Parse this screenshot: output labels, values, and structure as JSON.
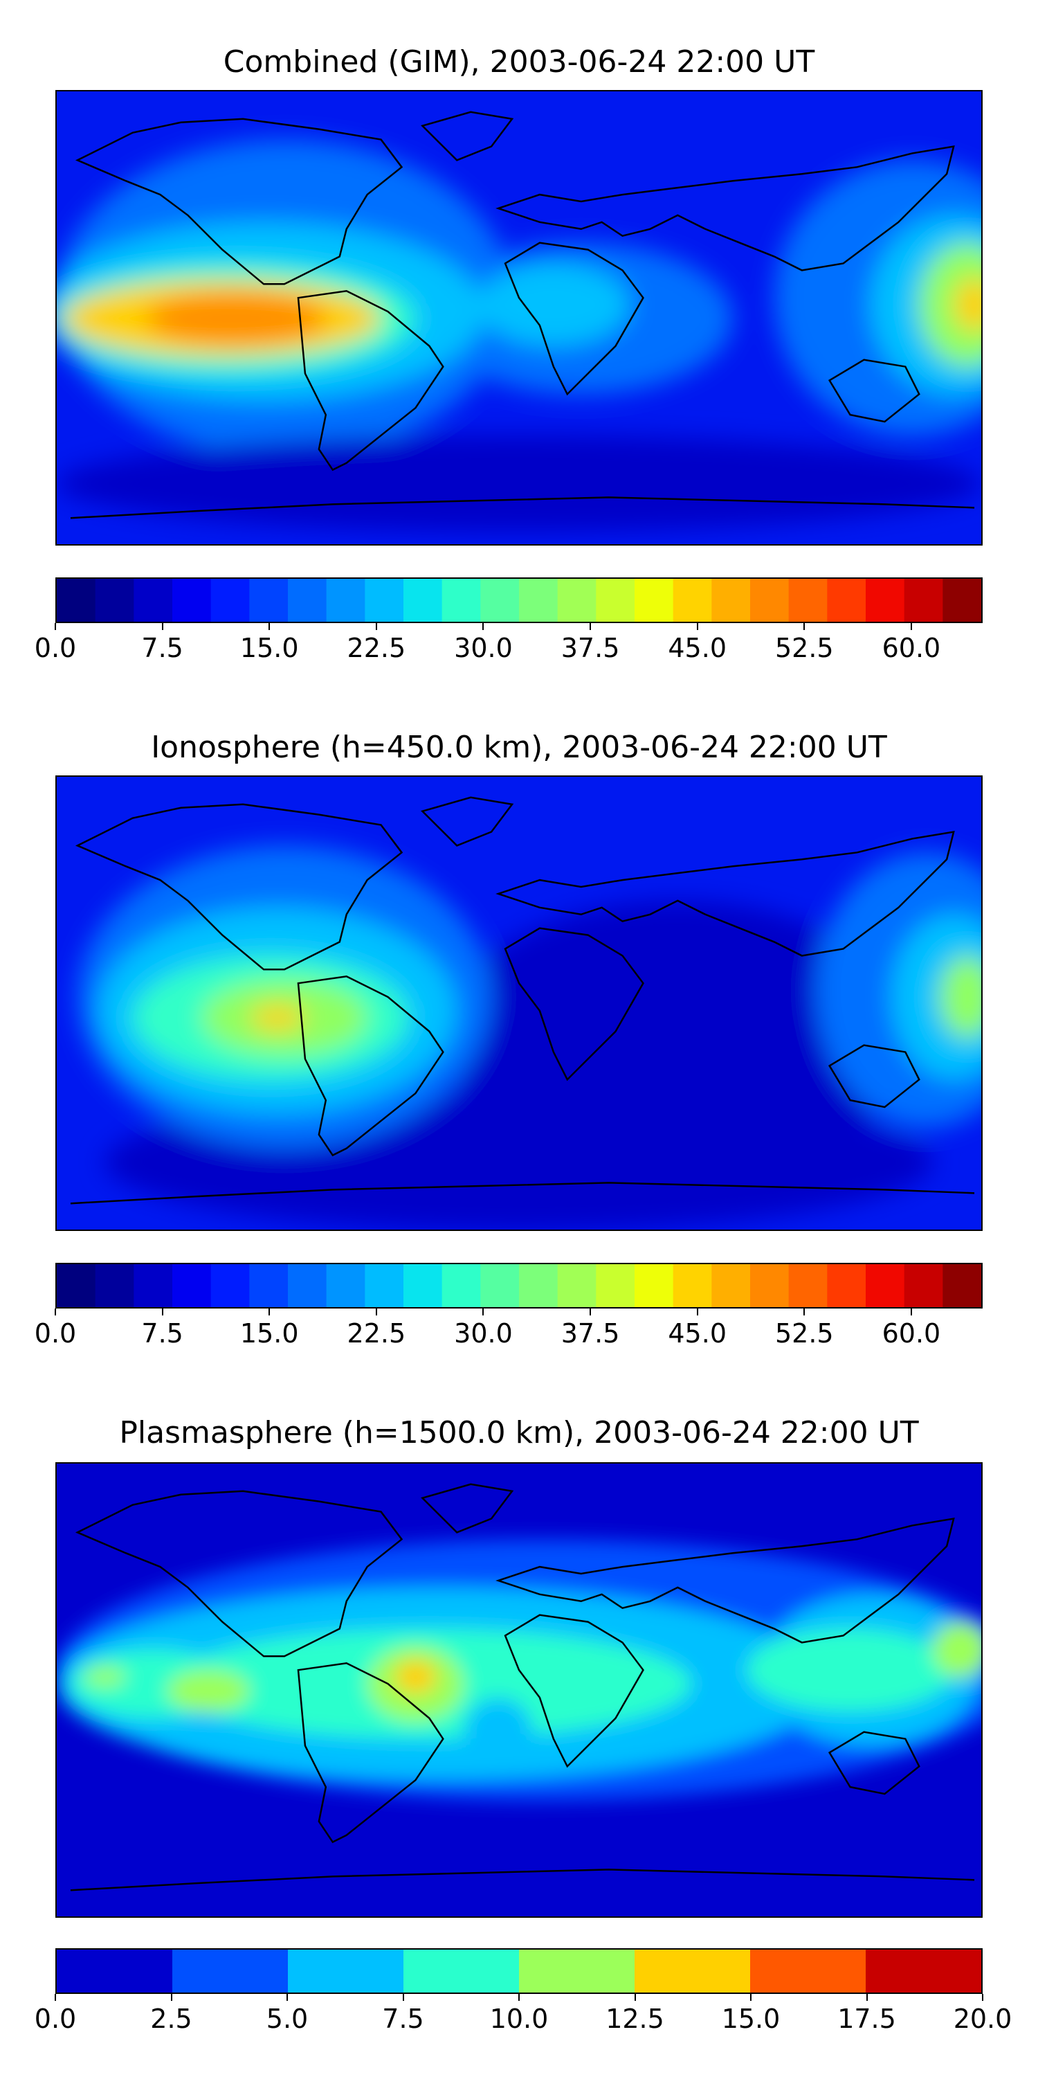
{
  "panels": [
    {
      "title": "Combined (GIM), 2003-06-24 22:00 UT",
      "colorbar_colors": [
        "#00007f",
        "#00009c",
        "#0000c8",
        "#0000f1",
        "#001cff",
        "#0044ff",
        "#006cff",
        "#0094ff",
        "#00bcff",
        "#08e4ee",
        "#2effc9",
        "#55ffa1",
        "#7cff7a",
        "#a1ff55",
        "#c9ff2e",
        "#eeff08",
        "#ffd300",
        "#ffaf00",
        "#ff8800",
        "#ff6500",
        "#ff3a00",
        "#f10800",
        "#c80000",
        "#8e0000"
      ],
      "ticks": [
        "0.0",
        "7.5",
        "15.0",
        "22.5",
        "30.0",
        "37.5",
        "45.0",
        "52.5",
        "60.0"
      ],
      "tick_values": [
        0,
        7.5,
        15,
        22.5,
        30,
        37.5,
        45,
        52.5,
        60
      ],
      "range": [
        0,
        65
      ]
    },
    {
      "title": "Ionosphere  (h=450.0 km), 2003-06-24 22:00 UT",
      "colorbar_colors": [
        "#00007f",
        "#00009c",
        "#0000c8",
        "#0000f1",
        "#001cff",
        "#0044ff",
        "#006cff",
        "#0094ff",
        "#00bcff",
        "#08e4ee",
        "#2effc9",
        "#55ffa1",
        "#7cff7a",
        "#a1ff55",
        "#c9ff2e",
        "#eeff08",
        "#ffd300",
        "#ffaf00",
        "#ff8800",
        "#ff6500",
        "#ff3a00",
        "#f10800",
        "#c80000",
        "#8e0000"
      ],
      "ticks": [
        "0.0",
        "7.5",
        "15.0",
        "22.5",
        "30.0",
        "37.5",
        "45.0",
        "52.5",
        "60.0"
      ],
      "tick_values": [
        0,
        7.5,
        15,
        22.5,
        30,
        37.5,
        45,
        52.5,
        60
      ],
      "range": [
        0,
        65
      ]
    },
    {
      "title": "Plasmasphere (h=1500.0 km), 2003-06-24 22:00 UT",
      "colorbar_colors": [
        "#0000cd",
        "#0050ff",
        "#00c0ff",
        "#29ffcd",
        "#9cff5a",
        "#ffd000",
        "#ff5800",
        "#c80000"
      ],
      "ticks": [
        "0.0",
        "2.5",
        "5.0",
        "7.5",
        "10.0",
        "12.5",
        "15.0",
        "17.5",
        "20.0"
      ],
      "tick_values": [
        0,
        2.5,
        5,
        7.5,
        10,
        12.5,
        15,
        17.5,
        20
      ],
      "range": [
        0,
        20
      ]
    }
  ],
  "map_colors": {
    "deep_blue": "#0000c8",
    "blue": "#1038ff",
    "mid_blue": "#0070ff",
    "cyan": "#00c0ff",
    "aqua": "#30ffc8",
    "green": "#90ff60",
    "yellow": "#ffd000",
    "orange": "#ff9000",
    "red": "#ff4000",
    "coastline": "#000000"
  }
}
